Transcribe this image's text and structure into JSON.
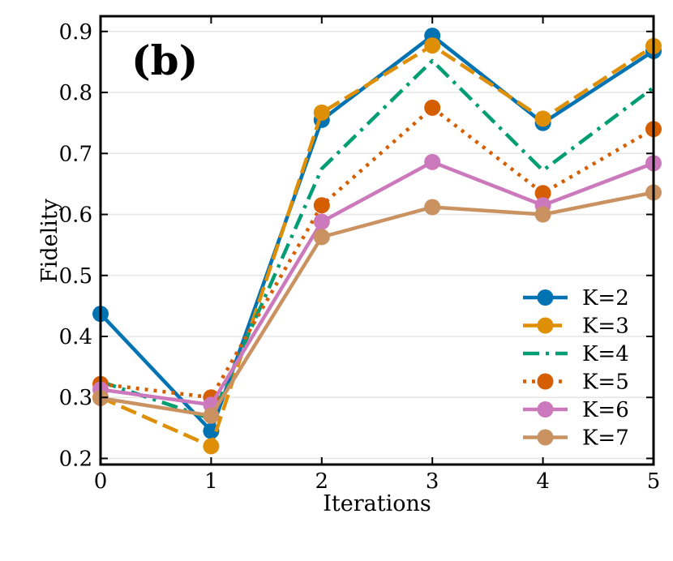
{
  "chart_data": {
    "type": "line",
    "panel_label": "(b)",
    "xlabel": "Iterations",
    "ylabel": "Fidelity",
    "xlim": [
      0,
      5
    ],
    "ylim": [
      0.19,
      0.925
    ],
    "x": [
      0,
      1,
      2,
      3,
      4,
      5
    ],
    "xticks": [
      0,
      1,
      2,
      3,
      4,
      5
    ],
    "yticks": [
      0.2,
      0.3,
      0.4,
      0.5,
      0.6,
      0.7,
      0.8,
      0.9
    ],
    "xtick_labels": [
      "0",
      "1",
      "2",
      "3",
      "4",
      "5"
    ],
    "ytick_labels": [
      "0.2",
      "0.3",
      "0.4",
      "0.5",
      "0.6",
      "0.7",
      "0.8",
      "0.9"
    ],
    "grid": "horizontal",
    "legend_position": "lower-right",
    "series": [
      {
        "name": "K=2",
        "color": "#0173b2",
        "style": "solid",
        "marker": true,
        "values": [
          0.437,
          0.245,
          0.755,
          0.893,
          0.75,
          0.868
        ]
      },
      {
        "name": "K=3",
        "color": "#de8f05",
        "style": "dashed",
        "marker": true,
        "values": [
          0.3,
          0.22,
          0.767,
          0.877,
          0.757,
          0.876
        ]
      },
      {
        "name": "K=4",
        "color": "#029e73",
        "style": "dashdot",
        "marker": false,
        "values": [
          0.326,
          0.265,
          0.675,
          0.852,
          0.672,
          0.808
        ]
      },
      {
        "name": "K=5",
        "color": "#d55e00",
        "style": "dotted",
        "marker": true,
        "values": [
          0.322,
          0.3,
          0.615,
          0.775,
          0.635,
          0.74
        ]
      },
      {
        "name": "K=6",
        "color": "#cc78bc",
        "style": "solid",
        "marker": true,
        "values": [
          0.313,
          0.288,
          0.588,
          0.686,
          0.615,
          0.684
        ]
      },
      {
        "name": "K=7",
        "color": "#ca9161",
        "style": "solid",
        "marker": true,
        "values": [
          0.299,
          0.27,
          0.563,
          0.612,
          0.6,
          0.636
        ]
      }
    ]
  }
}
